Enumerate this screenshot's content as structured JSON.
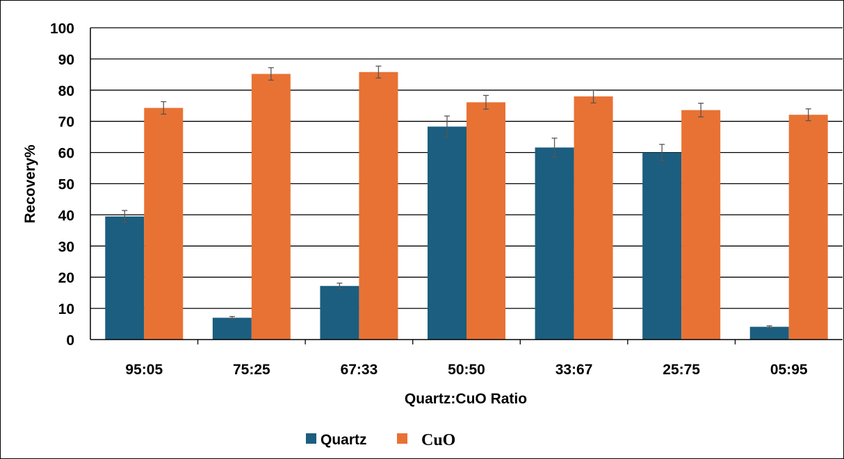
{
  "chart_data": {
    "type": "bar",
    "title": "",
    "xlabel": "Quartz:CuO Ratio",
    "ylabel": "Recovery%",
    "ylim": [
      0,
      100
    ],
    "yticks": [
      "0",
      "10",
      "20",
      "30",
      "40",
      "50",
      "60",
      "70",
      "80",
      "90",
      "100"
    ],
    "categories": [
      "95:05",
      "75:25",
      "67:33",
      "50:50",
      "33:67",
      "25:75",
      "05:95"
    ],
    "grid": true,
    "legend_position": "bottom-center",
    "series": [
      {
        "name": "Quartz",
        "color": "#1b5e7f",
        "values": [
          39.5,
          7.0,
          17.2,
          68.3,
          61.6,
          60.0,
          4.1
        ],
        "errors": [
          1.9,
          0.4,
          0.9,
          3.4,
          3.0,
          2.6,
          0.3
        ]
      },
      {
        "name": "CuO",
        "color": "#e87234",
        "values": [
          74.3,
          85.2,
          85.8,
          76.1,
          78.0,
          73.6,
          72.1
        ],
        "errors": [
          2.0,
          2.0,
          1.9,
          2.2,
          2.1,
          2.2,
          1.9
        ]
      }
    ]
  }
}
